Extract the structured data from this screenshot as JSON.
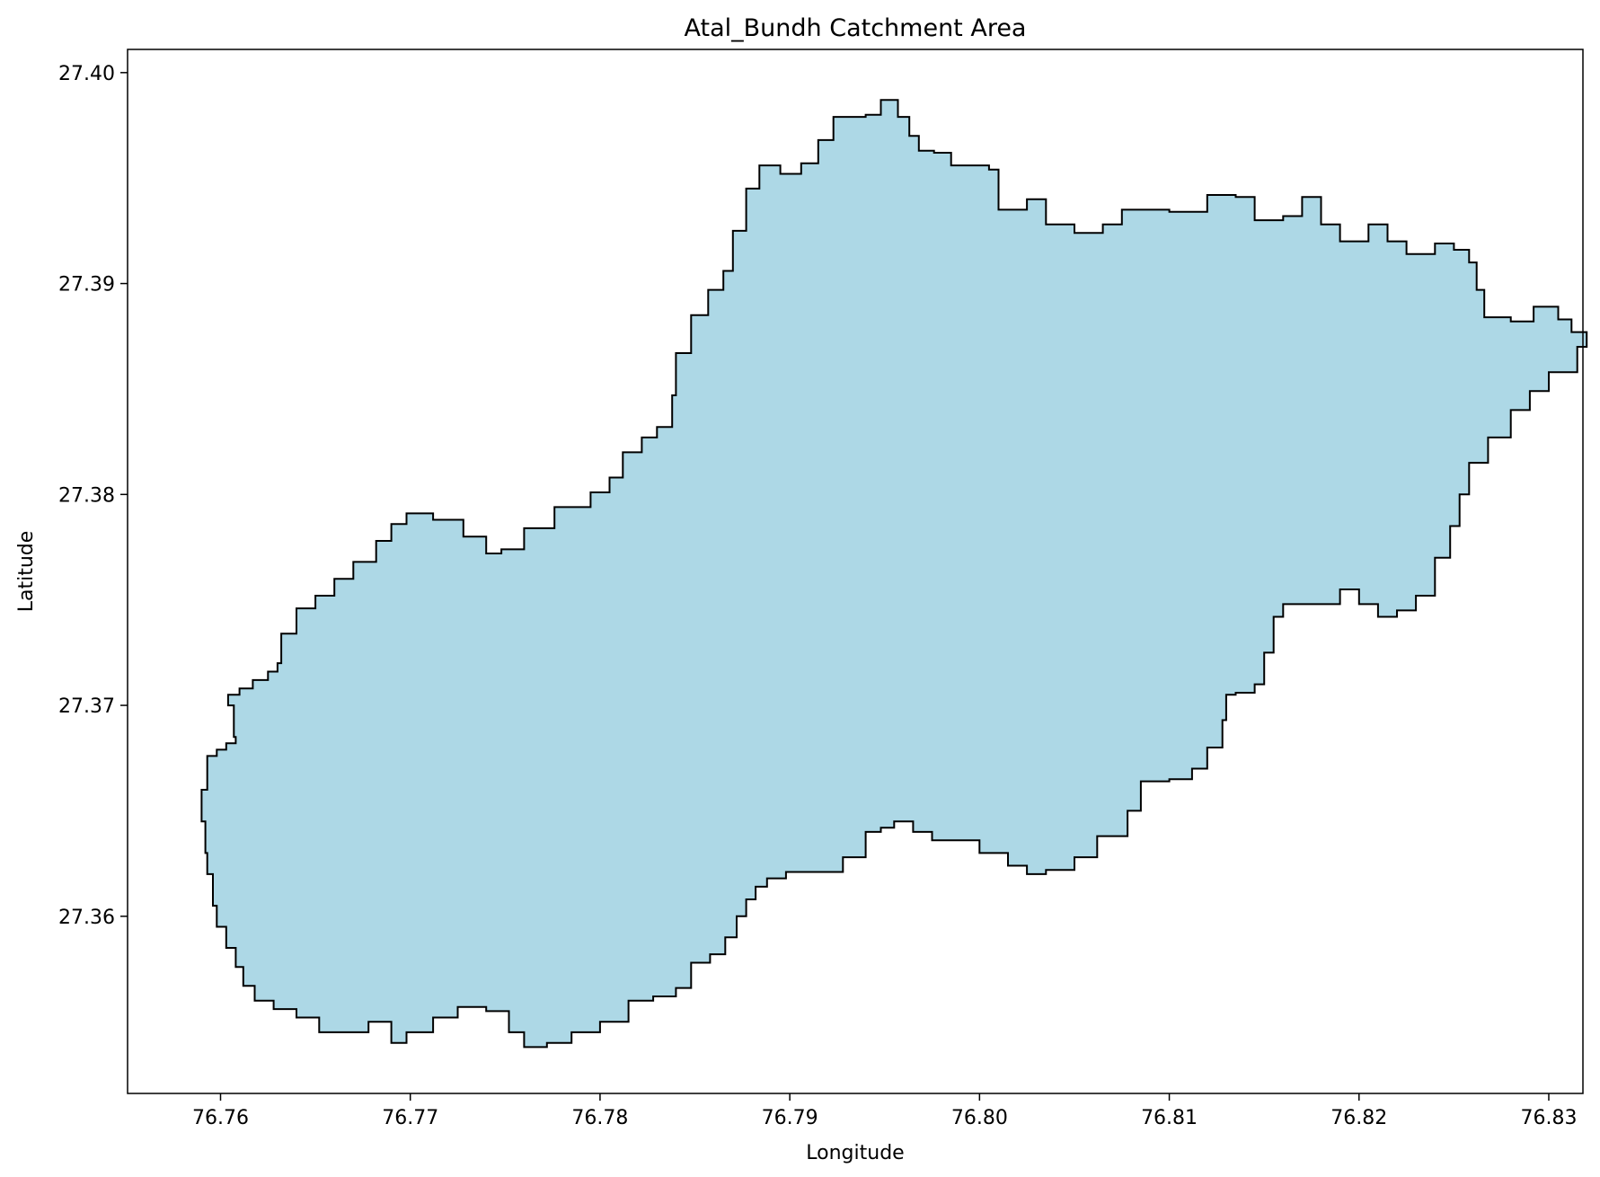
{
  "chart_data": {
    "type": "map",
    "title": "Atal_Bundh Catchment Area",
    "xlabel": "Longitude",
    "ylabel": "Latitude",
    "xlim": [
      76.7551,
      76.8318
    ],
    "ylim": [
      27.3516,
      27.4011
    ],
    "xticks": [
      76.76,
      76.77,
      76.78,
      76.79,
      76.8,
      76.81,
      76.82,
      76.83
    ],
    "xtick_labels": [
      "76.76",
      "76.77",
      "76.78",
      "76.79",
      "76.80",
      "76.81",
      "76.82",
      "76.83"
    ],
    "yticks": [
      27.36,
      27.37,
      27.38,
      27.39,
      27.4
    ],
    "ytick_labels": [
      "27.36",
      "27.37",
      "27.38",
      "27.39",
      "27.40"
    ],
    "grid": false,
    "fill_color": "#add8e6",
    "edge_color": "#000000",
    "boundary": [
      [
        76.7593,
        27.3676
      ],
      [
        76.7598,
        27.3679
      ],
      [
        76.7603,
        27.3682
      ],
      [
        76.7608,
        27.3685
      ],
      [
        76.7607,
        27.37
      ],
      [
        76.7604,
        27.3705
      ],
      [
        76.761,
        27.3708
      ],
      [
        76.7617,
        27.3712
      ],
      [
        76.7625,
        27.3716
      ],
      [
        76.763,
        27.372
      ],
      [
        76.7632,
        27.3734
      ],
      [
        76.764,
        27.3746
      ],
      [
        76.765,
        27.3752
      ],
      [
        76.766,
        27.376
      ],
      [
        76.767,
        27.3768
      ],
      [
        76.7682,
        27.3778
      ],
      [
        76.769,
        27.3786
      ],
      [
        76.7698,
        27.3791
      ],
      [
        76.7712,
        27.3788
      ],
      [
        76.7728,
        27.378
      ],
      [
        76.774,
        27.3772
      ],
      [
        76.7748,
        27.3774
      ],
      [
        76.776,
        27.3784
      ],
      [
        76.7776,
        27.3794
      ],
      [
        76.7795,
        27.3801
      ],
      [
        76.7805,
        27.3808
      ],
      [
        76.7812,
        27.382
      ],
      [
        76.7822,
        27.3827
      ],
      [
        76.783,
        27.3832
      ],
      [
        76.7838,
        27.3847
      ],
      [
        76.784,
        27.3867
      ],
      [
        76.7848,
        27.3885
      ],
      [
        76.7857,
        27.3897
      ],
      [
        76.7865,
        27.3906
      ],
      [
        76.787,
        27.3925
      ],
      [
        76.7877,
        27.3945
      ],
      [
        76.7884,
        27.3956
      ],
      [
        76.7895,
        27.3952
      ],
      [
        76.7906,
        27.3957
      ],
      [
        76.7915,
        27.3968
      ],
      [
        76.7923,
        27.3979
      ],
      [
        76.794,
        27.398
      ],
      [
        76.7948,
        27.3987
      ],
      [
        76.7957,
        27.3979
      ],
      [
        76.7963,
        27.397
      ],
      [
        76.7968,
        27.3963
      ],
      [
        76.7976,
        27.3962
      ],
      [
        76.7985,
        27.3956
      ],
      [
        76.8005,
        27.3954
      ],
      [
        76.801,
        27.3935
      ],
      [
        76.8025,
        27.394
      ],
      [
        76.8035,
        27.3928
      ],
      [
        76.805,
        27.3924
      ],
      [
        76.8065,
        27.3928
      ],
      [
        76.8075,
        27.3935
      ],
      [
        76.81,
        27.3934
      ],
      [
        76.812,
        27.3942
      ],
      [
        76.8135,
        27.3941
      ],
      [
        76.8145,
        27.393
      ],
      [
        76.816,
        27.3932
      ],
      [
        76.817,
        27.3941
      ],
      [
        76.818,
        27.3928
      ],
      [
        76.819,
        27.392
      ],
      [
        76.8205,
        27.3928
      ],
      [
        76.8215,
        27.392
      ],
      [
        76.8225,
        27.3914
      ],
      [
        76.824,
        27.3919
      ],
      [
        76.825,
        27.3916
      ],
      [
        76.8258,
        27.391
      ],
      [
        76.8262,
        27.3897
      ],
      [
        76.8266,
        27.3884
      ],
      [
        76.828,
        27.3882
      ],
      [
        76.8292,
        27.3889
      ],
      [
        76.8305,
        27.3883
      ],
      [
        76.8312,
        27.3877
      ],
      [
        76.832,
        27.387
      ],
      [
        76.8315,
        27.3858
      ],
      [
        76.83,
        27.3849
      ],
      [
        76.829,
        27.384
      ],
      [
        76.828,
        27.3827
      ],
      [
        76.8268,
        27.3815
      ],
      [
        76.8258,
        27.38
      ],
      [
        76.8253,
        27.3785
      ],
      [
        76.8248,
        27.377
      ],
      [
        76.824,
        27.3752
      ],
      [
        76.823,
        27.3745
      ],
      [
        76.822,
        27.3742
      ],
      [
        76.821,
        27.3748
      ],
      [
        76.82,
        27.3755
      ],
      [
        76.819,
        27.3748
      ],
      [
        76.8175,
        27.3748
      ],
      [
        76.816,
        27.3742
      ],
      [
        76.8155,
        27.3725
      ],
      [
        76.815,
        27.371
      ],
      [
        76.8145,
        27.3706
      ],
      [
        76.8135,
        27.3705
      ],
      [
        76.813,
        27.3693
      ],
      [
        76.8128,
        27.368
      ],
      [
        76.812,
        27.367
      ],
      [
        76.8112,
        27.3665
      ],
      [
        76.81,
        27.3664
      ],
      [
        76.8085,
        27.365
      ],
      [
        76.8078,
        27.3638
      ],
      [
        76.8062,
        27.3628
      ],
      [
        76.805,
        27.3622
      ],
      [
        76.8035,
        27.362
      ],
      [
        76.8025,
        27.3624
      ],
      [
        76.8015,
        27.363
      ],
      [
        76.8,
        27.3636
      ],
      [
        76.7985,
        27.3636
      ],
      [
        76.7975,
        27.364
      ],
      [
        76.7965,
        27.3645
      ],
      [
        76.7955,
        27.3642
      ],
      [
        76.7948,
        27.364
      ],
      [
        76.794,
        27.3628
      ],
      [
        76.7928,
        27.3621
      ],
      [
        76.7912,
        27.3621
      ],
      [
        76.7898,
        27.3618
      ],
      [
        76.7888,
        27.3614
      ],
      [
        76.7882,
        27.3608
      ],
      [
        76.7877,
        27.36
      ],
      [
        76.7872,
        27.359
      ],
      [
        76.7866,
        27.3582
      ],
      [
        76.7858,
        27.3578
      ],
      [
        76.7848,
        27.3566
      ],
      [
        76.784,
        27.3562
      ],
      [
        76.7828,
        27.356
      ],
      [
        76.7815,
        27.355
      ],
      [
        76.78,
        27.3545
      ],
      [
        76.7785,
        27.354
      ],
      [
        76.7772,
        27.3538
      ],
      [
        76.776,
        27.3545
      ],
      [
        76.7752,
        27.3555
      ],
      [
        76.774,
        27.3557
      ],
      [
        76.7725,
        27.3552
      ],
      [
        76.7712,
        27.3545
      ],
      [
        76.7698,
        27.354
      ],
      [
        76.769,
        27.355
      ],
      [
        76.7678,
        27.3545
      ],
      [
        76.7665,
        27.3545
      ],
      [
        76.7652,
        27.3552
      ],
      [
        76.764,
        27.3556
      ],
      [
        76.7628,
        27.356
      ],
      [
        76.7618,
        27.3567
      ],
      [
        76.7612,
        27.3576
      ],
      [
        76.7608,
        27.3585
      ],
      [
        76.7603,
        27.3595
      ],
      [
        76.7598,
        27.3605
      ],
      [
        76.7596,
        27.362
      ],
      [
        76.7593,
        27.363
      ],
      [
        76.7592,
        27.3645
      ],
      [
        76.759,
        27.366
      ]
    ]
  }
}
